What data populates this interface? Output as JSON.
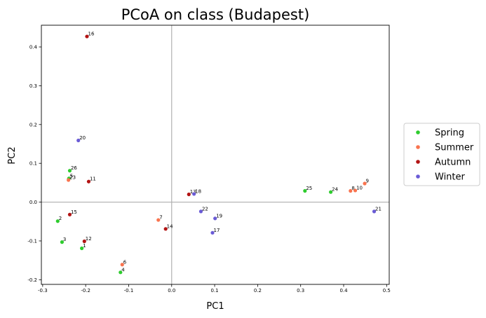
{
  "chart_data": {
    "type": "scatter",
    "title": "PCoA on class (Budapest)",
    "xlabel": "PC1",
    "ylabel": "PC2",
    "xlim": [
      -0.303,
      0.506
    ],
    "ylim": [
      -0.212,
      0.456
    ],
    "xticks": [
      -0.3,
      -0.2,
      -0.1,
      0.0,
      0.1,
      0.2,
      0.3,
      0.4,
      0.5
    ],
    "yticks": [
      -0.2,
      -0.1,
      0.0,
      0.1,
      0.2,
      0.3,
      0.4
    ],
    "xtick_labels": [
      "-0.3",
      "-0.2",
      "-0.1",
      "0.0",
      "0.1",
      "0.2",
      "0.3",
      "0.4",
      "0.5"
    ],
    "ytick_labels": [
      "-0.2",
      "-0.1",
      "0.0",
      "0.1",
      "0.2",
      "0.3",
      "0.4"
    ],
    "reference_lines": {
      "x": 0,
      "y": 0,
      "color": "#b0b0b0"
    },
    "legend_position": "right-outside",
    "grid": false,
    "series": [
      {
        "name": "Spring",
        "color": "#2ecc2e",
        "points": [
          {
            "x": -0.265,
            "y": -0.049,
            "label": "2"
          },
          {
            "x": -0.255,
            "y": -0.103,
            "label": "3"
          },
          {
            "x": -0.119,
            "y": -0.181,
            "label": "4"
          },
          {
            "x": -0.209,
            "y": -0.119,
            "label": "1"
          },
          {
            "x": -0.239,
            "y": 0.061,
            "label": "5"
          },
          {
            "x": -0.237,
            "y": 0.081,
            "label": "26"
          },
          {
            "x": 0.31,
            "y": 0.029,
            "label": "25"
          },
          {
            "x": 0.37,
            "y": 0.026,
            "label": "24"
          }
        ]
      },
      {
        "name": "Summer",
        "color": "#f9744f",
        "points": [
          {
            "x": -0.24,
            "y": 0.057,
            "label": "23"
          },
          {
            "x": -0.115,
            "y": -0.161,
            "label": "6"
          },
          {
            "x": -0.031,
            "y": -0.046,
            "label": "7"
          },
          {
            "x": 0.416,
            "y": 0.029,
            "label": "8"
          },
          {
            "x": 0.449,
            "y": 0.048,
            "label": "9"
          },
          {
            "x": 0.427,
            "y": 0.03,
            "label": "10"
          }
        ]
      },
      {
        "name": "Autumn",
        "color": "#b31414",
        "points": [
          {
            "x": -0.197,
            "y": 0.427,
            "label": "16"
          },
          {
            "x": -0.193,
            "y": 0.053,
            "label": "11"
          },
          {
            "x": -0.237,
            "y": -0.032,
            "label": "15"
          },
          {
            "x": -0.203,
            "y": -0.101,
            "label": "12"
          },
          {
            "x": -0.014,
            "y": -0.069,
            "label": "14"
          },
          {
            "x": 0.04,
            "y": 0.02,
            "label": "13"
          }
        ]
      },
      {
        "name": "Winter",
        "color": "#6a5bd6",
        "points": [
          {
            "x": -0.217,
            "y": 0.159,
            "label": "20"
          },
          {
            "x": 0.052,
            "y": 0.021,
            "label": "18"
          },
          {
            "x": 0.068,
            "y": -0.024,
            "label": "22"
          },
          {
            "x": 0.101,
            "y": -0.042,
            "label": "19"
          },
          {
            "x": 0.095,
            "y": -0.079,
            "label": "17"
          },
          {
            "x": 0.471,
            "y": -0.024,
            "label": "21"
          }
        ]
      }
    ]
  }
}
